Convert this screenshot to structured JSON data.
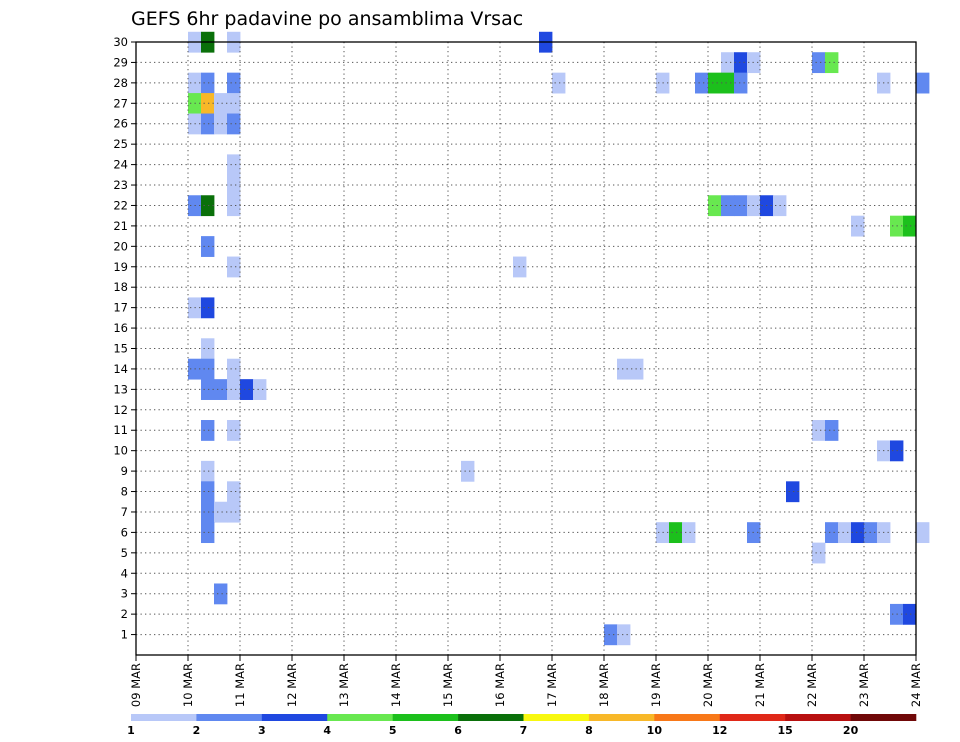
{
  "chart_data": {
    "type": "heatmap",
    "title": "GEFS 6hr padavine po ansamblima Vrsac",
    "x_categories": [
      "09 MAR",
      "10 MAR",
      "11 MAR",
      "12 MAR",
      "13 MAR",
      "14 MAR",
      "15 MAR",
      "16 MAR",
      "17 MAR",
      "18 MAR",
      "19 MAR",
      "20 MAR",
      "21 MAR",
      "22 MAR",
      "23 MAR",
      "24 MAR"
    ],
    "x_range_days": [
      0,
      15
    ],
    "y_ticks": [
      1,
      2,
      3,
      4,
      5,
      6,
      7,
      8,
      9,
      10,
      11,
      12,
      13,
      14,
      15,
      16,
      17,
      18,
      19,
      20,
      21,
      22,
      23,
      24,
      25,
      26,
      27,
      28,
      29,
      30
    ],
    "y_range": [
      0,
      30
    ],
    "grid": true,
    "legend_placement": "bottom",
    "colorbar": {
      "labels": [
        "1",
        "2",
        "3",
        "4",
        "5",
        "6",
        "7",
        "8",
        "10",
        "12",
        "15",
        "20"
      ],
      "colors": [
        "#b8c8f8",
        "#6088f0",
        "#1f48e0",
        "#68e850",
        "#1cc01c",
        "#0a700a",
        "#f8f810",
        "#f8b828",
        "#f87818",
        "#e02818",
        "#b81010",
        "#700808"
      ]
    },
    "cells": [
      {
        "x": 1.0,
        "y": 30,
        "v": 1
      },
      {
        "x": 1.25,
        "y": 30,
        "v": 6
      },
      {
        "x": 1.75,
        "y": 30,
        "v": 1
      },
      {
        "x": 7.75,
        "y": 30,
        "v": 3
      },
      {
        "x": 11.25,
        "y": 29,
        "v": 1
      },
      {
        "x": 11.5,
        "y": 29,
        "v": 3
      },
      {
        "x": 11.75,
        "y": 29,
        "v": 1
      },
      {
        "x": 13.0,
        "y": 29,
        "v": 2
      },
      {
        "x": 13.25,
        "y": 29,
        "v": 4
      },
      {
        "x": 1.0,
        "y": 28,
        "v": 1
      },
      {
        "x": 1.25,
        "y": 28,
        "v": 2
      },
      {
        "x": 1.75,
        "y": 28,
        "v": 2
      },
      {
        "x": 8.0,
        "y": 28,
        "v": 1
      },
      {
        "x": 10.0,
        "y": 28,
        "v": 1
      },
      {
        "x": 10.75,
        "y": 28,
        "v": 2
      },
      {
        "x": 11.0,
        "y": 28,
        "v": 5
      },
      {
        "x": 11.25,
        "y": 28,
        "v": 5
      },
      {
        "x": 11.5,
        "y": 28,
        "v": 2
      },
      {
        "x": 14.25,
        "y": 28,
        "v": 1
      },
      {
        "x": 15.0,
        "y": 28,
        "v": 2
      },
      {
        "x": 1.0,
        "y": 27,
        "v": 4
      },
      {
        "x": 1.25,
        "y": 27,
        "v": 8
      },
      {
        "x": 1.5,
        "y": 27,
        "v": 1
      },
      {
        "x": 1.75,
        "y": 27,
        "v": 1
      },
      {
        "x": 1.0,
        "y": 26,
        "v": 1
      },
      {
        "x": 1.25,
        "y": 26,
        "v": 2
      },
      {
        "x": 1.5,
        "y": 26,
        "v": 1
      },
      {
        "x": 1.75,
        "y": 26,
        "v": 2
      },
      {
        "x": 1.75,
        "y": 24,
        "v": 1
      },
      {
        "x": 1.75,
        "y": 23,
        "v": 1
      },
      {
        "x": 1.0,
        "y": 22,
        "v": 2
      },
      {
        "x": 1.25,
        "y": 22,
        "v": 6
      },
      {
        "x": 1.75,
        "y": 22,
        "v": 1
      },
      {
        "x": 11.0,
        "y": 22,
        "v": 4
      },
      {
        "x": 11.25,
        "y": 22,
        "v": 2
      },
      {
        "x": 11.5,
        "y": 22,
        "v": 2
      },
      {
        "x": 11.75,
        "y": 22,
        "v": 1
      },
      {
        "x": 12.0,
        "y": 22,
        "v": 3
      },
      {
        "x": 12.25,
        "y": 22,
        "v": 1
      },
      {
        "x": 13.75,
        "y": 21,
        "v": 1
      },
      {
        "x": 14.5,
        "y": 21,
        "v": 4
      },
      {
        "x": 14.75,
        "y": 21,
        "v": 5
      },
      {
        "x": 1.25,
        "y": 20,
        "v": 2
      },
      {
        "x": 1.75,
        "y": 19,
        "v": 1
      },
      {
        "x": 7.25,
        "y": 19,
        "v": 1
      },
      {
        "x": 1.0,
        "y": 17,
        "v": 1
      },
      {
        "x": 1.25,
        "y": 17,
        "v": 3
      },
      {
        "x": 1.25,
        "y": 15,
        "v": 1
      },
      {
        "x": 1.0,
        "y": 14,
        "v": 2
      },
      {
        "x": 1.25,
        "y": 14,
        "v": 2
      },
      {
        "x": 1.75,
        "y": 14,
        "v": 1
      },
      {
        "x": 9.25,
        "y": 14,
        "v": 1
      },
      {
        "x": 9.5,
        "y": 14,
        "v": 1
      },
      {
        "x": 1.25,
        "y": 13,
        "v": 2
      },
      {
        "x": 1.5,
        "y": 13,
        "v": 2
      },
      {
        "x": 1.75,
        "y": 13,
        "v": 1
      },
      {
        "x": 2.0,
        "y": 13,
        "v": 3
      },
      {
        "x": 2.25,
        "y": 13,
        "v": 1
      },
      {
        "x": 1.25,
        "y": 11,
        "v": 2
      },
      {
        "x": 1.75,
        "y": 11,
        "v": 1
      },
      {
        "x": 13.0,
        "y": 11,
        "v": 1
      },
      {
        "x": 13.25,
        "y": 11,
        "v": 2
      },
      {
        "x": 14.25,
        "y": 10,
        "v": 1
      },
      {
        "x": 14.5,
        "y": 10,
        "v": 3
      },
      {
        "x": 1.25,
        "y": 9,
        "v": 1
      },
      {
        "x": 6.25,
        "y": 9,
        "v": 1
      },
      {
        "x": 1.25,
        "y": 8,
        "v": 2
      },
      {
        "x": 1.75,
        "y": 8,
        "v": 1
      },
      {
        "x": 12.5,
        "y": 8,
        "v": 3
      },
      {
        "x": 1.25,
        "y": 7,
        "v": 2
      },
      {
        "x": 1.5,
        "y": 7,
        "v": 1
      },
      {
        "x": 1.75,
        "y": 7,
        "v": 1
      },
      {
        "x": 1.25,
        "y": 6,
        "v": 2
      },
      {
        "x": 10.0,
        "y": 6,
        "v": 1
      },
      {
        "x": 10.25,
        "y": 6,
        "v": 5
      },
      {
        "x": 10.5,
        "y": 6,
        "v": 1
      },
      {
        "x": 11.75,
        "y": 6,
        "v": 2
      },
      {
        "x": 13.25,
        "y": 6,
        "v": 2
      },
      {
        "x": 13.5,
        "y": 6,
        "v": 1
      },
      {
        "x": 13.75,
        "y": 6,
        "v": 3
      },
      {
        "x": 14.0,
        "y": 6,
        "v": 2
      },
      {
        "x": 14.25,
        "y": 6,
        "v": 1
      },
      {
        "x": 15.0,
        "y": 6,
        "v": 1
      },
      {
        "x": 13.0,
        "y": 5,
        "v": 1
      },
      {
        "x": 1.5,
        "y": 3,
        "v": 2
      },
      {
        "x": 14.5,
        "y": 2,
        "v": 2
      },
      {
        "x": 14.75,
        "y": 2,
        "v": 3
      },
      {
        "x": 9.0,
        "y": 1,
        "v": 2
      },
      {
        "x": 9.25,
        "y": 1,
        "v": 1
      }
    ]
  }
}
